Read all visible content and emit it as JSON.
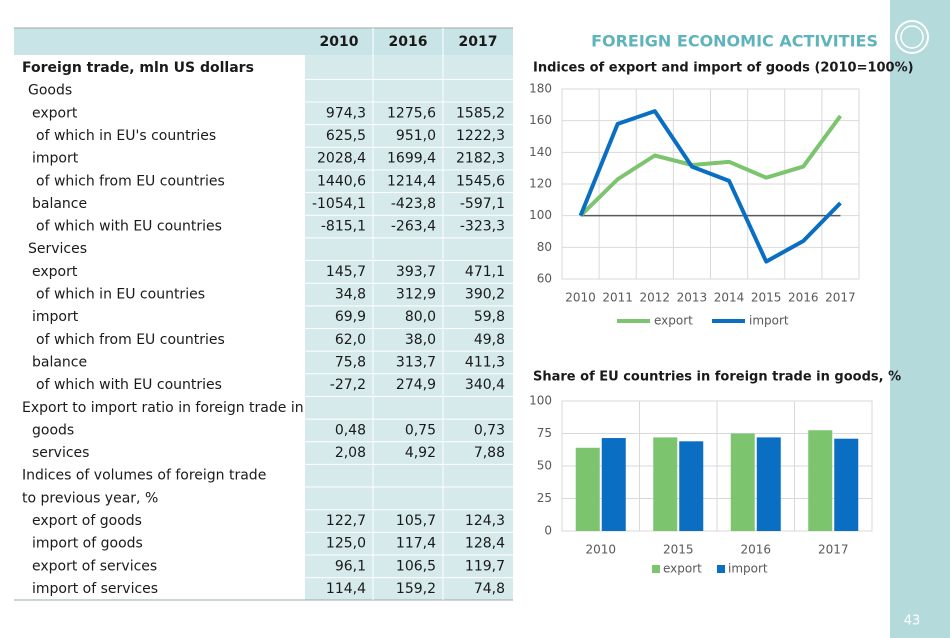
{
  "header": {
    "title": "FOREIGN ECONOMIC ACTIVITIES"
  },
  "page_number": "43",
  "table": {
    "columns": [
      "2010",
      "2016",
      "2017"
    ],
    "rows": [
      {
        "label": "Foreign trade, mln US dollars"
      },
      {
        "label": "Goods"
      },
      {
        "label": "export",
        "values": [
          "974,3",
          "1275,6",
          "1585,2"
        ]
      },
      {
        "label": "of which in EU's countries",
        "values": [
          "625,5",
          "951,0",
          "1222,3"
        ]
      },
      {
        "label": "import",
        "values": [
          "2028,4",
          "1699,4",
          "2182,3"
        ]
      },
      {
        "label": "of which from EU countries",
        "values": [
          "1440,6",
          "1214,4",
          "1545,6"
        ]
      },
      {
        "label": "balance",
        "values": [
          "-1054,1",
          "-423,8",
          "-597,1"
        ]
      },
      {
        "label": "of which with EU countries",
        "values": [
          "-815,1",
          "-263,4",
          "-323,3"
        ]
      },
      {
        "label": "Services"
      },
      {
        "label": "export",
        "values": [
          "145,7",
          "393,7",
          "471,1"
        ]
      },
      {
        "label": "of which in EU countries",
        "values": [
          "34,8",
          "312,9",
          "390,2"
        ]
      },
      {
        "label": "import",
        "values": [
          "69,9",
          "80,0",
          "59,8"
        ]
      },
      {
        "label": "of which from EU countries",
        "values": [
          "62,0",
          "38,0",
          "49,8"
        ]
      },
      {
        "label": "balance",
        "values": [
          "75,8",
          "313,7",
          "411,3"
        ]
      },
      {
        "label": "of which with EU countries",
        "values": [
          "-27,2",
          "274,9",
          "340,4"
        ]
      },
      {
        "label": "Export to import ratio in foreign trade in"
      },
      {
        "label": "goods",
        "values": [
          "0,48",
          "0,75",
          "0,73"
        ]
      },
      {
        "label": "services",
        "values": [
          "2,08",
          "4,92",
          "7,88"
        ]
      },
      {
        "label": "Indices of volumes of foreign trade"
      },
      {
        "label": "to previous year, %"
      },
      {
        "label": "export of goods",
        "values": [
          "122,7",
          "105,7",
          "124,3"
        ]
      },
      {
        "label": "import of goods",
        "values": [
          "125,0",
          "117,4",
          "128,4"
        ]
      },
      {
        "label": "export of services",
        "values": [
          "96,1",
          "106,5",
          "119,7"
        ]
      },
      {
        "label": "import of services",
        "values": [
          "114,4",
          "159,2",
          "74,8"
        ]
      }
    ]
  },
  "chart_data": [
    {
      "type": "line",
      "title": "Indices of export and import of goods (2010=100%)",
      "categories": [
        "2010",
        "2011",
        "2012",
        "2013",
        "2014",
        "2015",
        "2016",
        "2017"
      ],
      "series": [
        {
          "name": "export",
          "color": "#7cc46e",
          "values": [
            100,
            123,
            138,
            132,
            134,
            124,
            131,
            163
          ]
        },
        {
          "name": "import",
          "color": "#0a6fc2",
          "values": [
            100,
            158,
            166,
            131,
            122,
            71,
            84,
            108
          ]
        }
      ],
      "reference_line": 100,
      "ylim": [
        60,
        180
      ],
      "yticks": [
        60,
        80,
        100,
        120,
        140,
        160,
        180
      ],
      "grid": true,
      "legend": "bottom"
    },
    {
      "type": "bar",
      "title": "Share of EU countries in foreign trade in goods, %",
      "categories": [
        "2010",
        "2015",
        "2016",
        "2017"
      ],
      "series": [
        {
          "name": "export",
          "color": "#7cc46e",
          "values": [
            64,
            72,
            75,
            77.5
          ]
        },
        {
          "name": "import",
          "color": "#0a6fc2",
          "values": [
            71.5,
            69,
            72,
            71
          ]
        }
      ],
      "ylim": [
        0,
        100
      ],
      "yticks": [
        0,
        25,
        50,
        75,
        100
      ],
      "grid": true,
      "legend": "bottom"
    }
  ]
}
